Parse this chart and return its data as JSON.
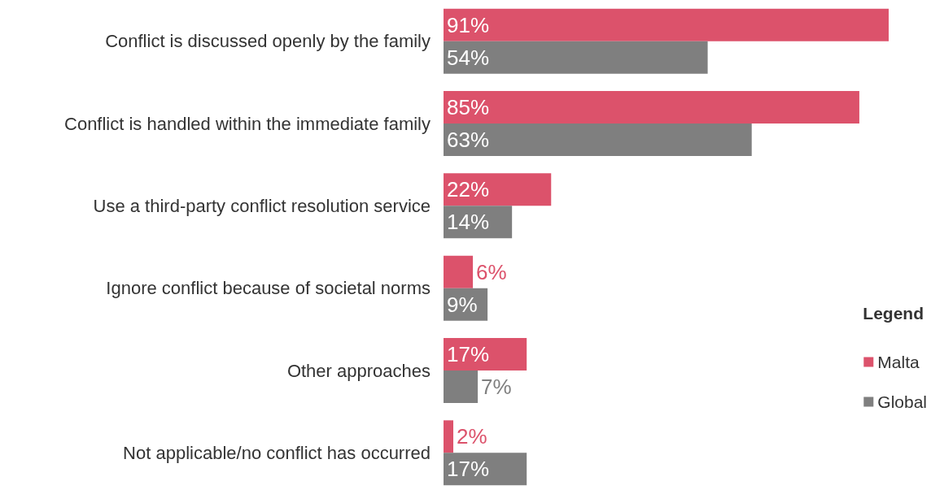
{
  "chart_data": {
    "type": "bar",
    "orientation": "horizontal",
    "legend_title": "Legend",
    "legend": "right",
    "categories": [
      "Conflict is discussed openly by the family",
      "Conflict is handled within the immediate family",
      "Use a third-party conflict resolution service",
      "Ignore conflict because of societal norms",
      "Other approaches",
      "Not applicable/no conflict has occurred"
    ],
    "series": [
      {
        "name": "Malta",
        "color": "#dc526b",
        "values": [
          91,
          85,
          22,
          6,
          17,
          2
        ],
        "value_labels": [
          "91%",
          "85%",
          "22%",
          "6%",
          "17%",
          "2%"
        ]
      },
      {
        "name": "Global",
        "color": "#7f7f7f",
        "values": [
          54,
          63,
          14,
          9,
          7,
          17
        ],
        "value_labels": [
          "54%",
          "63%",
          "14%",
          "9%",
          "7%",
          "17%"
        ]
      }
    ]
  }
}
